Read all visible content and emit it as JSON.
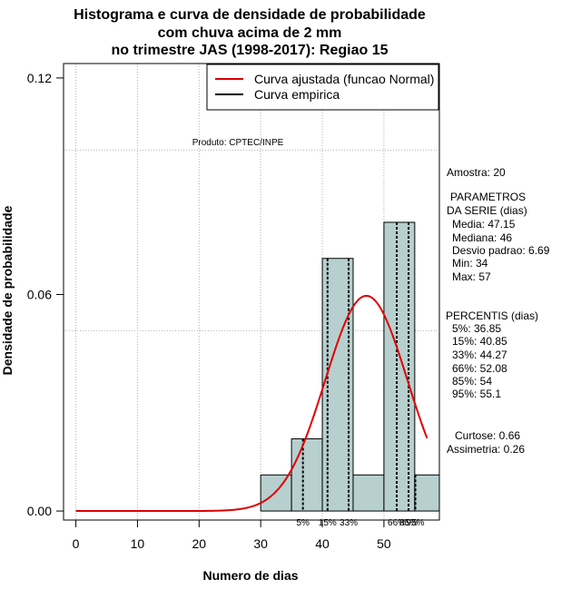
{
  "chart_data": {
    "type": "bar",
    "title_lines": [
      "Histograma e curva de densidade de probabilidade",
      "com chuva acima de 2 mm",
      "no trimestre JAS (1998-2017): Regiao 15"
    ],
    "xlabel": "Numero de dias",
    "ylabel": "Densidade de probabilidade",
    "xlim": [
      -2,
      59
    ],
    "ylim": [
      -0.0025,
      0.124
    ],
    "x_ticks": [
      0,
      10,
      20,
      30,
      40,
      50
    ],
    "y_ticks": [
      0.0,
      0.06,
      0.12
    ],
    "y_tick_labels": [
      "0.00",
      "0.06",
      "0.12"
    ],
    "grid_x": [
      0,
      10,
      20,
      30,
      40,
      50
    ],
    "grid_y": [
      0.1,
      0.05
    ],
    "bins": [
      {
        "x0": 30,
        "x1": 35,
        "density": 0.01
      },
      {
        "x0": 35,
        "x1": 40,
        "density": 0.02
      },
      {
        "x0": 40,
        "x1": 45,
        "density": 0.07
      },
      {
        "x0": 45,
        "x1": 50,
        "density": 0.01
      },
      {
        "x0": 50,
        "x1": 55,
        "density": 0.08
      },
      {
        "x0": 55,
        "x1": 60,
        "density": 0.01
      }
    ],
    "bar_color": "#b7cfcf",
    "normal_curve": {
      "mean": 47.15,
      "sd": 6.69,
      "x_from": 0,
      "x_to": 57,
      "color": "#e00000"
    },
    "percentiles": [
      {
        "label": "5%",
        "value": 36.85
      },
      {
        "label": "15%",
        "value": 40.85
      },
      {
        "label": "33%",
        "value": 44.27
      },
      {
        "label": "66%",
        "value": 52.08
      },
      {
        "label": "85%",
        "value": 54
      },
      {
        "label": "95%",
        "value": 55.1
      }
    ],
    "legend": [
      {
        "label": "Curva ajustada (funcao Normal)",
        "color": "#e00000"
      },
      {
        "label": "Curva empirica",
        "color": "#000000"
      }
    ],
    "legend_position": "top-right",
    "credit": "Produto: CPTEC/INPE"
  },
  "stats_panel": {
    "amostra": "Amostra: 20",
    "param_title_1": "PARAMETROS",
    "param_title_2": "DA SERIE (dias)",
    "media": "Media: 47.15",
    "mediana": "Mediana: 46",
    "desvio": "Desvio padrao: 6.69",
    "min": "Min: 34",
    "max": "Max: 57",
    "perc_title": "PERCENTIS (dias)",
    "p5": "5%: 36.85",
    "p15": "15%: 40.85",
    "p33": "33%: 44.27",
    "p66": "66%: 52.08",
    "p85": "85%: 54",
    "p95": "95%: 55.1",
    "curtose": "Curtose: 0.66",
    "assimetria": "Assimetria: 0.26"
  }
}
